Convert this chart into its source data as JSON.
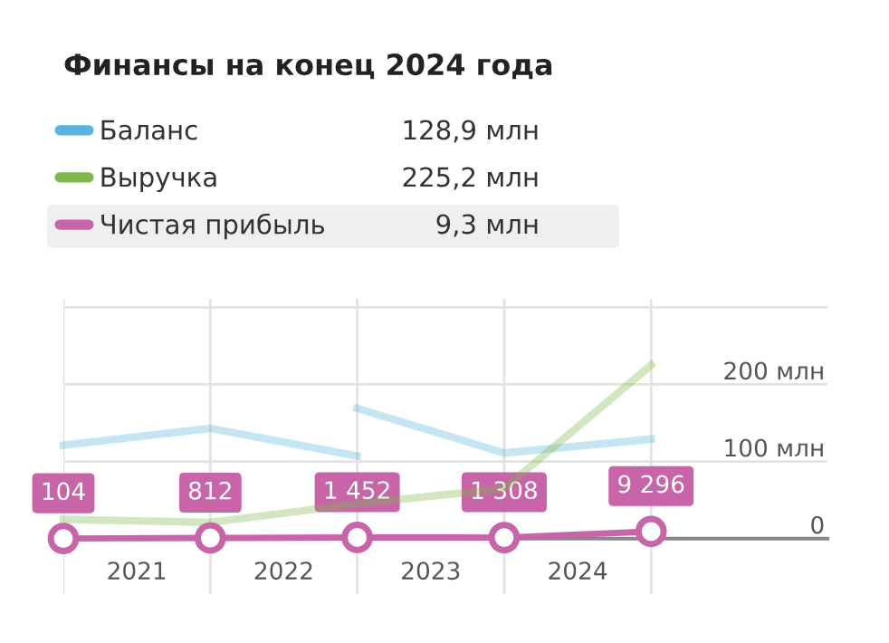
{
  "chart_data": {
    "type": "line",
    "title": "Финансы на конец 2024 года",
    "x": [
      2021,
      2022,
      2023,
      2024,
      2025
    ],
    "series": [
      {
        "name": "Баланс",
        "color": "#5ab4dc",
        "x": [
          2021,
          2022,
          2023
        ],
        "values": [
          121,
          143,
          107
        ]
      },
      {
        "color": "#5ab4dc",
        "x": [
          2023,
          2024,
          2025
        ],
        "values": [
          169,
          111,
          129
        ]
      },
      {
        "name": "Выручка",
        "color": "#7db84a",
        "values": [
          25,
          21,
          45,
          65,
          225
        ]
      },
      {
        "name": "Чистая прибыль",
        "color": "#c865a8",
        "axis": "y2",
        "values": [
          104,
          812,
          1452,
          1308,
          9296
        ],
        "marker": "circle",
        "value_labels": [
          "104",
          "812",
          "1 452",
          "1 308",
          "9 296"
        ]
      }
    ],
    "annotations": [
      "128,9 млн",
      "225,2 млн",
      "9,3 млн"
    ],
    "xlim": [
      2021,
      2026.2
    ],
    "xticks": [
      {
        "value": 2021,
        "label": null
      },
      {
        "value": 2021.5,
        "label": "2021"
      },
      {
        "value": 2022,
        "label": null
      },
      {
        "value": 2022.5,
        "label": "2022"
      },
      {
        "value": 2023,
        "label": null
      },
      {
        "value": 2023.5,
        "label": "2023"
      },
      {
        "value": 2024,
        "label": null
      },
      {
        "value": 2024.5,
        "label": "2024"
      },
      {
        "value": 2025,
        "label": null
      }
    ],
    "ylim": [
      -72,
      311
    ],
    "yticks": [
      {
        "value": 0,
        "label": "0"
      },
      {
        "value": 100,
        "label": "100 млн"
      },
      {
        "value": 200,
        "label": "200 млн"
      },
      {
        "value": 300,
        "label": null
      }
    ],
    "y2lim": [
      -72000,
      311000
    ],
    "grid": true,
    "legend": "top left"
  }
}
